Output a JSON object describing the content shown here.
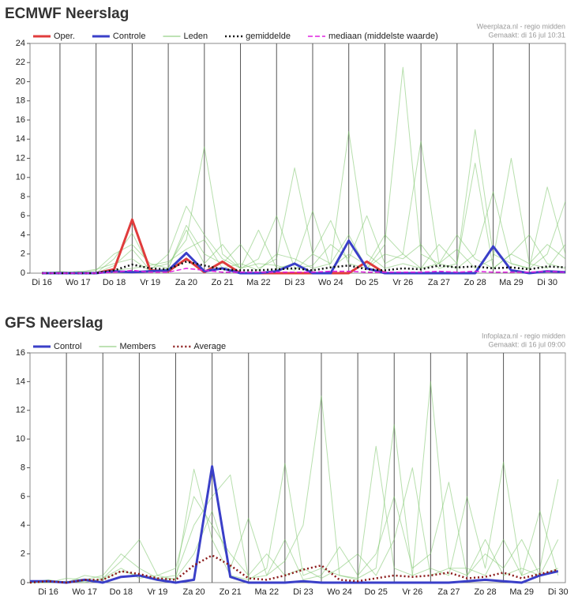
{
  "chart_data": [
    {
      "type": "line",
      "title": "ECMWF Neerslag",
      "source": [
        "Weerplaza.nl - regio midden",
        "Gemaakt: di 16 jul 10:31"
      ],
      "xlim": [
        16.17,
        31.0
      ],
      "ylim": [
        0,
        24
      ],
      "yticks": [
        0,
        2,
        4,
        6,
        8,
        10,
        12,
        14,
        16,
        18,
        20,
        22,
        24
      ],
      "xticks": [
        {
          "value": 16.5,
          "label": "Di 16"
        },
        {
          "value": 17.5,
          "label": "Wo 17"
        },
        {
          "value": 18.5,
          "label": "Do 18"
        },
        {
          "value": 19.5,
          "label": "Vr 19"
        },
        {
          "value": 20.5,
          "label": "Za 20"
        },
        {
          "value": 21.5,
          "label": "Zo 21"
        },
        {
          "value": 22.5,
          "label": "Ma 22"
        },
        {
          "value": 23.5,
          "label": "Di 23"
        },
        {
          "value": 24.5,
          "label": "Wo 24"
        },
        {
          "value": 25.5,
          "label": "Do 25"
        },
        {
          "value": 26.5,
          "label": "Vr 26"
        },
        {
          "value": 27.5,
          "label": "Za 27"
        },
        {
          "value": 28.5,
          "label": "Zo 28"
        },
        {
          "value": 29.5,
          "label": "Ma 29"
        },
        {
          "value": 30.5,
          "label": "Di 30"
        }
      ],
      "x": [
        16.5,
        17,
        17.5,
        18,
        18.5,
        19,
        19.5,
        20,
        20.5,
        21,
        21.5,
        22,
        22.5,
        23,
        23.5,
        24,
        24.5,
        25,
        25.5,
        26,
        26.5,
        27,
        27.5,
        28,
        28.5,
        29,
        29.5,
        30,
        30.5,
        31
      ],
      "series": [
        {
          "name": "Oper.",
          "color": "#e03c3c",
          "width": 3,
          "values": [
            0,
            0,
            0,
            0,
            0.4,
            5.6,
            0.3,
            0.2,
            1.5,
            0.1,
            1.2,
            0,
            0,
            0,
            0,
            0,
            0,
            0,
            1.2,
            0,
            null,
            null,
            null,
            null,
            null,
            null,
            null,
            null,
            null,
            null
          ]
        },
        {
          "name": "Controle",
          "color": "#3a3fc8",
          "width": 3,
          "values": [
            0,
            0,
            0,
            0,
            0.2,
            0.1,
            0.2,
            0.3,
            2.1,
            0.2,
            0.5,
            0,
            0,
            0.2,
            1,
            0,
            0,
            3.4,
            0.5,
            0,
            0,
            0,
            0,
            0,
            0,
            2.8,
            0.3,
            0,
            0.2,
            0.1
          ]
        },
        {
          "name": "Leden",
          "color": "#7cc46a",
          "width": 1,
          "runs": [
            [
              0,
              0,
              0.2,
              0,
              1.5,
              4.2,
              0.5,
              1,
              3.5,
              13.2,
              2,
              0.5,
              1,
              0.8,
              0.3,
              2,
              5.5,
              1,
              0.5,
              3,
              21.5,
              2,
              1,
              4,
              1.5,
              0.5,
              2,
              1,
              3,
              1.5
            ],
            [
              0.1,
              0,
              0,
              0.3,
              2,
              3,
              1,
              0.5,
              5,
              2,
              1,
              3,
              0.5,
              1.5,
              11,
              2,
              1,
              14.8,
              2,
              0.5,
              1,
              0.5,
              3,
              1,
              15,
              2,
              1,
              0.5,
              9,
              2
            ],
            [
              0,
              0.2,
              0,
              0,
              0.8,
              2.5,
              0.3,
              2,
              7,
              4,
              1.5,
              0.5,
              4.5,
              0.5,
              1,
              6.5,
              0.5,
              2,
              0.8,
              4,
              2,
              13.8,
              1,
              0.5,
              2,
              8.5,
              1,
              0.5,
              2,
              7.5
            ],
            [
              0,
              0,
              0.1,
              0.4,
              1,
              1.5,
              0.2,
              0.5,
              4.5,
              1,
              3,
              0.5,
              1.5,
              6,
              0.5,
              0.8,
              3,
              1.5,
              6,
              1,
              2,
              0.5,
              1,
              2.5,
              0.5,
              1.5,
              12,
              1,
              0.5,
              3
            ],
            [
              0,
              0,
              0,
              0,
              0.3,
              0.5,
              0.8,
              1.2,
              2.5,
              3.5,
              0.5,
              1,
              0.3,
              2,
              1.5,
              0.5,
              1,
              4,
              0.5,
              2,
              1.5,
              3,
              0.5,
              1,
              11.5,
              0.5,
              2,
              4,
              1,
              0.5
            ]
          ]
        },
        {
          "name": "gemiddelde",
          "color": "#111111",
          "width": 2.5,
          "linestyle": "dotted",
          "values": [
            0,
            0,
            0,
            0,
            0.3,
            0.9,
            0.5,
            0.4,
            1.2,
            0.8,
            0.4,
            0.3,
            0.3,
            0.4,
            0.5,
            0.3,
            0.6,
            0.8,
            0.4,
            0.3,
            0.5,
            0.4,
            0.8,
            0.6,
            0.7,
            0.5,
            0.6,
            0.4,
            0.7,
            0.6
          ]
        },
        {
          "name": "mediaan (middelste waarde)",
          "color": "#e020e0",
          "width": 1.5,
          "linestyle": "dashed",
          "values": [
            0,
            0,
            0,
            0,
            0.1,
            0.3,
            0.1,
            0.1,
            0.5,
            0.3,
            0.1,
            0.1,
            0.1,
            0.1,
            0.1,
            0.1,
            0.2,
            0.2,
            0.1,
            0.1,
            0.1,
            0.1,
            0.2,
            0.1,
            0.2,
            0.1,
            0.1,
            0.1,
            0.2,
            0.1
          ]
        }
      ]
    },
    {
      "type": "line",
      "title": "GFS Neerslag",
      "source": [
        "Infoplaza.nl - regio midden",
        "Gemaakt: di 16 jul 09:00"
      ],
      "xlim": [
        16.0,
        30.7
      ],
      "ylim": [
        0,
        16
      ],
      "yticks": [
        0,
        2,
        4,
        6,
        8,
        10,
        12,
        14,
        16
      ],
      "xticks": [
        {
          "value": 16.5,
          "label": "Di 16"
        },
        {
          "value": 17.5,
          "label": "Wo 17"
        },
        {
          "value": 18.5,
          "label": "Do 18"
        },
        {
          "value": 19.5,
          "label": "Vr 19"
        },
        {
          "value": 20.5,
          "label": "Za 20"
        },
        {
          "value": 21.5,
          "label": "Zo 21"
        },
        {
          "value": 22.5,
          "label": "Ma 22"
        },
        {
          "value": 23.5,
          "label": "Di 23"
        },
        {
          "value": 24.5,
          "label": "Wo 24"
        },
        {
          "value": 25.5,
          "label": "Do 25"
        },
        {
          "value": 26.5,
          "label": "Vr 26"
        },
        {
          "value": 27.5,
          "label": "Za 27"
        },
        {
          "value": 28.5,
          "label": "Zo 28"
        },
        {
          "value": 29.5,
          "label": "Ma 29"
        },
        {
          "value": 30.5,
          "label": "Di 30"
        }
      ],
      "x": [
        16,
        16.5,
        17,
        17.5,
        18,
        18.5,
        19,
        19.5,
        20,
        20.5,
        21,
        21.5,
        22,
        22.5,
        23,
        23.5,
        24,
        24.5,
        25,
        25.5,
        26,
        26.5,
        27,
        27.5,
        28,
        28.5,
        29,
        29.5,
        30,
        30.5
      ],
      "series": [
        {
          "name": "Control",
          "color": "#3a3fc8",
          "width": 3,
          "values": [
            0.1,
            0.1,
            0,
            0.2,
            0,
            0.4,
            0.5,
            0.2,
            0,
            0.2,
            8.1,
            0.4,
            0,
            0,
            0,
            0.1,
            0,
            0,
            0,
            0,
            0,
            0,
            0,
            0,
            0.1,
            0.2,
            0.1,
            0,
            0.5,
            0.8
          ]
        },
        {
          "name": "Members",
          "color": "#7cc46a",
          "width": 1,
          "runs": [
            [
              0,
              0.2,
              0,
              0.5,
              0.3,
              1.5,
              3,
              0.5,
              0.2,
              7.9,
              3,
              0.5,
              0.2,
              1,
              8.3,
              0.5,
              1,
              0.5,
              0.2,
              9.5,
              1,
              0.5,
              14,
              1,
              0.5,
              3,
              0.5,
              1,
              0.5,
              3
            ],
            [
              0,
              0,
              0.3,
              0.2,
              0.5,
              2,
              1,
              0.3,
              0.5,
              4,
              6,
              7.5,
              0.3,
              0.5,
              1.5,
              4,
              13,
              0.5,
              0.3,
              1,
              11,
              0.5,
              1,
              0.5,
              6,
              1,
              8.4,
              0.5,
              1,
              7.2
            ],
            [
              0.1,
              0,
              0,
              0.1,
              0.2,
              0.8,
              0.5,
              0.2,
              0.3,
              2,
              5,
              1,
              4.5,
              0.5,
              3,
              0.2,
              0.5,
              2.5,
              0.5,
              2,
              6,
              1,
              2,
              7,
              0.5,
              2,
              1,
              3,
              0.5,
              1
            ],
            [
              0,
              0,
              0.1,
              0,
              0.3,
              1,
              0.3,
              0.5,
              1,
              6,
              4,
              2,
              0.5,
              2,
              0.5,
              1,
              0.3,
              1,
              2,
              0.5,
              3,
              8,
              0.5,
              1,
              1,
              0.5,
              3,
              0.5,
              5,
              0.5
            ]
          ]
        },
        {
          "name": "Average",
          "color": "#8b1a1a",
          "width": 2.5,
          "linestyle": "dotted",
          "values": [
            0,
            0.1,
            0,
            0.2,
            0.2,
            0.8,
            0.6,
            0.3,
            0.2,
            1.2,
            1.9,
            1.2,
            0.3,
            0.2,
            0.5,
            0.9,
            1.2,
            0.2,
            0.1,
            0.3,
            0.5,
            0.4,
            0.5,
            0.7,
            0.3,
            0.4,
            0.7,
            0.3,
            0.6,
            0.9
          ]
        }
      ]
    }
  ]
}
